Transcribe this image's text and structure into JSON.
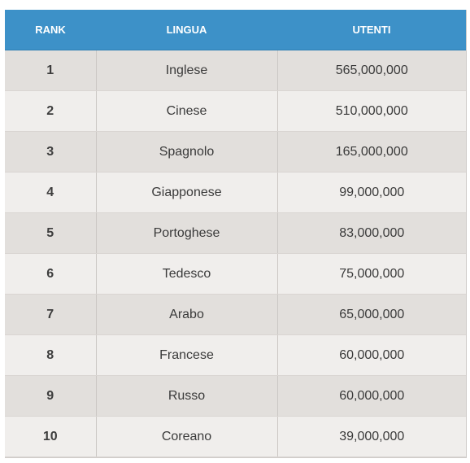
{
  "table": {
    "headers": [
      "RANK",
      "LINGUA",
      "UTENTI"
    ],
    "rows": [
      {
        "rank": "1",
        "lingua": "Inglese",
        "utenti": "565,000,000"
      },
      {
        "rank": "2",
        "lingua": "Cinese",
        "utenti": "510,000,000"
      },
      {
        "rank": "3",
        "lingua": "Spagnolo",
        "utenti": "165,000,000"
      },
      {
        "rank": "4",
        "lingua": "Giapponese",
        "utenti": "99,000,000"
      },
      {
        "rank": "5",
        "lingua": "Portoghese",
        "utenti": "83,000,000"
      },
      {
        "rank": "6",
        "lingua": "Tedesco",
        "utenti": "75,000,000"
      },
      {
        "rank": "7",
        "lingua": "Arabo",
        "utenti": "65,000,000"
      },
      {
        "rank": "8",
        "lingua": "Francese",
        "utenti": "60,000,000"
      },
      {
        "rank": "9",
        "lingua": "Russo",
        "utenti": "60,000,000"
      },
      {
        "rank": "10",
        "lingua": "Coreano",
        "utenti": "39,000,000"
      }
    ]
  },
  "colors": {
    "header_bg": "#3d91c8",
    "header_text": "#ffffff",
    "row_odd": "#e2dfdc",
    "row_even": "#f0eeec"
  }
}
